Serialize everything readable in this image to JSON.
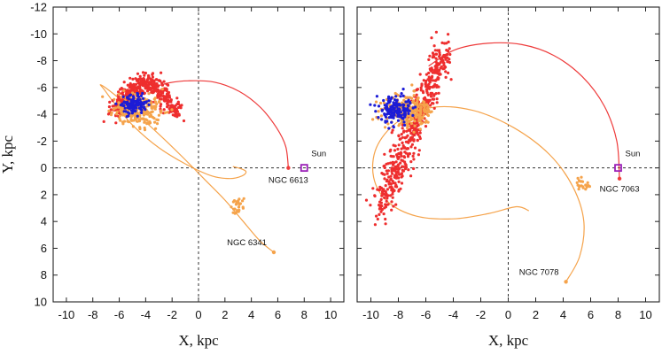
{
  "figure": {
    "type": "multi-panel scatter + orbit"
  },
  "chart_data": [
    {
      "type": "scatter",
      "xlabel": "X, kpc",
      "ylabel": "Y, kpc",
      "xlim": [
        -11,
        11
      ],
      "ylim": [
        10,
        -12
      ],
      "xticks": [
        -10,
        -8,
        -6,
        -4,
        -2,
        0,
        2,
        4,
        6,
        8,
        10
      ],
      "yticks": [
        -12,
        -10,
        -8,
        -6,
        -4,
        -2,
        0,
        2,
        4,
        6,
        8,
        10
      ],
      "reference_lines": {
        "x": 0,
        "y": 0,
        "style": "dashed"
      },
      "sun": {
        "label": "Sun",
        "x": 8.0,
        "y": 0.0,
        "color": "#9a1fb8"
      },
      "orbits": [
        {
          "name": "NGC 6613",
          "color": "#ee3b3b",
          "points": [
            [
              6.8,
              0.0
            ],
            [
              6.6,
              -1.6
            ],
            [
              5.9,
              -3.0
            ],
            [
              4.7,
              -4.5
            ],
            [
              3.1,
              -5.7
            ],
            [
              1.2,
              -6.4
            ],
            [
              -0.8,
              -6.5
            ],
            [
              -2.2,
              -6.35
            ],
            [
              -3.5,
              -6.0
            ]
          ]
        },
        {
          "name": "NGC 6341",
          "color": "#f5a34b",
          "points": [
            [
              5.7,
              6.3
            ],
            [
              4.6,
              5.4
            ],
            [
              3.3,
              3.9
            ],
            [
              2.0,
              2.4
            ],
            [
              0.5,
              0.9
            ],
            [
              -1.3,
              -0.9
            ],
            [
              -3.2,
              -2.7
            ],
            [
              -5.0,
              -4.3
            ],
            [
              -6.4,
              -5.5
            ],
            [
              -7.4,
              -6.2
            ],
            [
              -7.1,
              -5.8
            ],
            [
              -6.2,
              -4.6
            ],
            [
              -4.9,
              -3.1
            ],
            [
              -3.0,
              -1.5
            ],
            [
              -1.0,
              -0.3
            ],
            [
              1.0,
              0.6
            ],
            [
              2.4,
              0.8
            ],
            [
              3.3,
              0.6
            ],
            [
              3.6,
              0.3
            ],
            [
              3.3,
              0.1
            ],
            [
              2.6,
              -0.1
            ]
          ]
        }
      ],
      "clusters": [
        {
          "name": "red",
          "color": "#ee2e2e",
          "cx": -4.3,
          "cy": -5.1,
          "sx": 1.0,
          "sy": 0.75,
          "count": 420,
          "extent": [
            [
              -6.5,
              -3.0
            ],
            [
              -1.5,
              -6.5
            ]
          ]
        },
        {
          "name": "orange",
          "color": "#f5a34b",
          "cx": -4.6,
          "cy": -4.3,
          "sx": 0.9,
          "sy": 0.55,
          "count": 260
        },
        {
          "name": "blue",
          "color": "#1c1cd6",
          "cx": -4.9,
          "cy": -4.7,
          "sx": 0.45,
          "sy": 0.35,
          "count": 120
        },
        {
          "name": "orange-trail",
          "color": "#f5a34b",
          "cx": 3.0,
          "cy": 2.8,
          "sx": 0.25,
          "sy": 0.35,
          "count": 25
        }
      ],
      "labels": [
        {
          "text": "NGC 6613",
          "x": 6.8,
          "y": 0.0
        },
        {
          "text": "NGC 6341",
          "x": 5.7,
          "y": 6.3
        }
      ]
    },
    {
      "type": "scatter",
      "xlabel": "X, kpc",
      "ylabel": "",
      "xlim": [
        -11,
        11
      ],
      "ylim": [
        10,
        -12
      ],
      "xticks": [
        -10,
        -8,
        -6,
        -4,
        -2,
        0,
        2,
        4,
        6,
        8,
        10
      ],
      "yticks": [
        -12,
        -10,
        -8,
        -6,
        -4,
        -2,
        0,
        2,
        4,
        6,
        8,
        10
      ],
      "reference_lines": {
        "x": 0,
        "y": 0,
        "style": "dashed"
      },
      "sun": {
        "label": "Sun",
        "x": 8.0,
        "y": 0.0,
        "color": "#9a1fb8"
      },
      "orbits": [
        {
          "name": "NGC 7063",
          "color": "#ee3b3b",
          "points": [
            [
              8.1,
              0.8
            ],
            [
              7.9,
              -2.0
            ],
            [
              7.0,
              -4.6
            ],
            [
              5.4,
              -6.8
            ],
            [
              3.3,
              -8.4
            ],
            [
              1.0,
              -9.2
            ],
            [
              -1.5,
              -9.3
            ],
            [
              -3.9,
              -8.8
            ],
            [
              -5.8,
              -7.6
            ]
          ]
        },
        {
          "name": "NGC 7078",
          "color": "#f5a34b",
          "points": [
            [
              4.2,
              8.5
            ],
            [
              5.2,
              6.6
            ],
            [
              5.5,
              4.0
            ],
            [
              4.7,
              1.4
            ],
            [
              3.0,
              -1.0
            ],
            [
              0.4,
              -3.0
            ],
            [
              -2.6,
              -4.3
            ],
            [
              -5.6,
              -4.5
            ],
            [
              -8.1,
              -3.4
            ],
            [
              -9.6,
              -1.5
            ],
            [
              -9.8,
              0.7
            ],
            [
              -8.8,
              2.5
            ],
            [
              -6.7,
              3.6
            ],
            [
              -4.0,
              3.8
            ],
            [
              -1.4,
              3.4
            ],
            [
              0.6,
              2.9
            ],
            [
              1.5,
              3.2
            ]
          ]
        }
      ],
      "clusters": [
        {
          "name": "red",
          "color": "#ee2e2e",
          "cx": -7.4,
          "cy": -4.8,
          "sx": 0.95,
          "sy": 1.5,
          "count": 520,
          "extent": [
            [
              -9.3,
              3.0
            ],
            [
              -4.5,
              -9.0
            ]
          ]
        },
        {
          "name": "orange",
          "color": "#f5a34b",
          "cx": -7.2,
          "cy": -4.3,
          "sx": 0.9,
          "sy": 0.55,
          "count": 240
        },
        {
          "name": "blue",
          "color": "#1c1cd6",
          "cx": -8.2,
          "cy": -4.3,
          "sx": 0.55,
          "sy": 0.45,
          "count": 150
        },
        {
          "name": "orange-trail",
          "color": "#f5a34b",
          "cx": 5.4,
          "cy": 1.1,
          "sx": 0.3,
          "sy": 0.35,
          "count": 22
        }
      ],
      "labels": [
        {
          "text": "NGC 7063",
          "x": 8.1,
          "y": 0.8
        },
        {
          "text": "NGC 7078",
          "x": 4.2,
          "y": 8.5
        }
      ]
    }
  ]
}
